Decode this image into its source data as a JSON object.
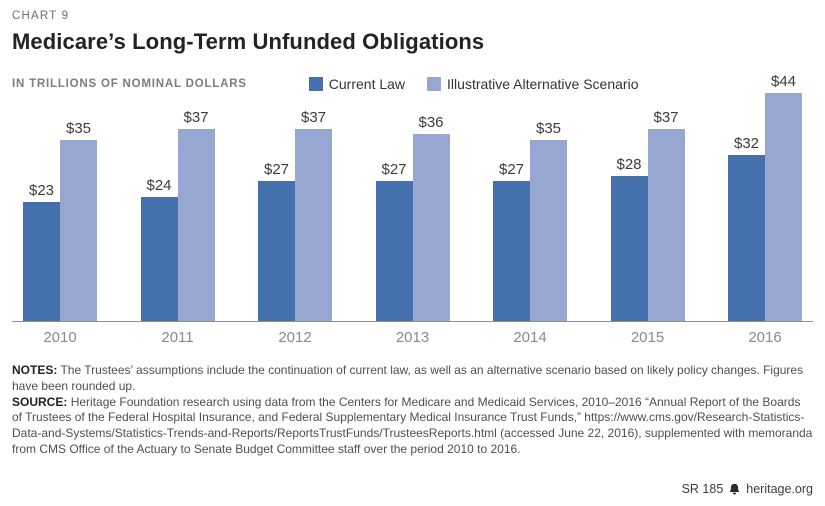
{
  "header": {
    "eyebrow": "CHART 9",
    "title": "Medicare’s Long-Term Unfunded Obligations",
    "subtitle": "IN TRILLIONS OF NOMINAL DOLLARS"
  },
  "legend": [
    {
      "label": "Current Law",
      "color": "#4470ad"
    },
    {
      "label": "Illustrative Alternative Scenario",
      "color": "#97a7d2"
    }
  ],
  "chart_data": {
    "type": "bar",
    "title": "Medicare’s Long-Term Unfunded Obligations",
    "units_label": "IN TRILLIONS OF NOMINAL DOLLARS",
    "categories": [
      "2010",
      "2011",
      "2012",
      "2013",
      "2014",
      "2015",
      "2016"
    ],
    "series": [
      {
        "name": "Current Law",
        "color": "#4470ad",
        "values": [
          23,
          24,
          27,
          27,
          27,
          28,
          32
        ]
      },
      {
        "name": "Illustrative Alternative Scenario",
        "color": "#97a7d2",
        "values": [
          35,
          37,
          37,
          36,
          35,
          37,
          44
        ]
      }
    ],
    "value_prefix": "$",
    "ylim": [
      0,
      44
    ],
    "grid": false,
    "legend_position": "top"
  },
  "notes": {
    "label": "NOTES:",
    "text": "The Trustees’ assumptions include the continuation of current law, as well as an alternative scenario based on likely policy changes. Figures have been rounded up."
  },
  "source": {
    "label": "SOURCE:",
    "text": "Heritage Foundation research using data from the Centers for Medicare and Medicaid Services, 2010–2016 “Annual Report of the Boards of Trustees of the Federal Hospital Insurance, and Federal Supplementary Medical Insurance Trust Funds,” https://www.cms.gov/Research-Statistics-Data-and-Systems/Statistics-Trends-and-Reports/ReportsTrustFunds/TrusteesReports.html (accessed June 22, 2016), supplemented with memoranda from CMS Office of the Actuary to Senate Budget Committee staff over the period 2010 to 2016."
  },
  "footer": {
    "report_id": "SR 185",
    "site": "heritage.org"
  }
}
